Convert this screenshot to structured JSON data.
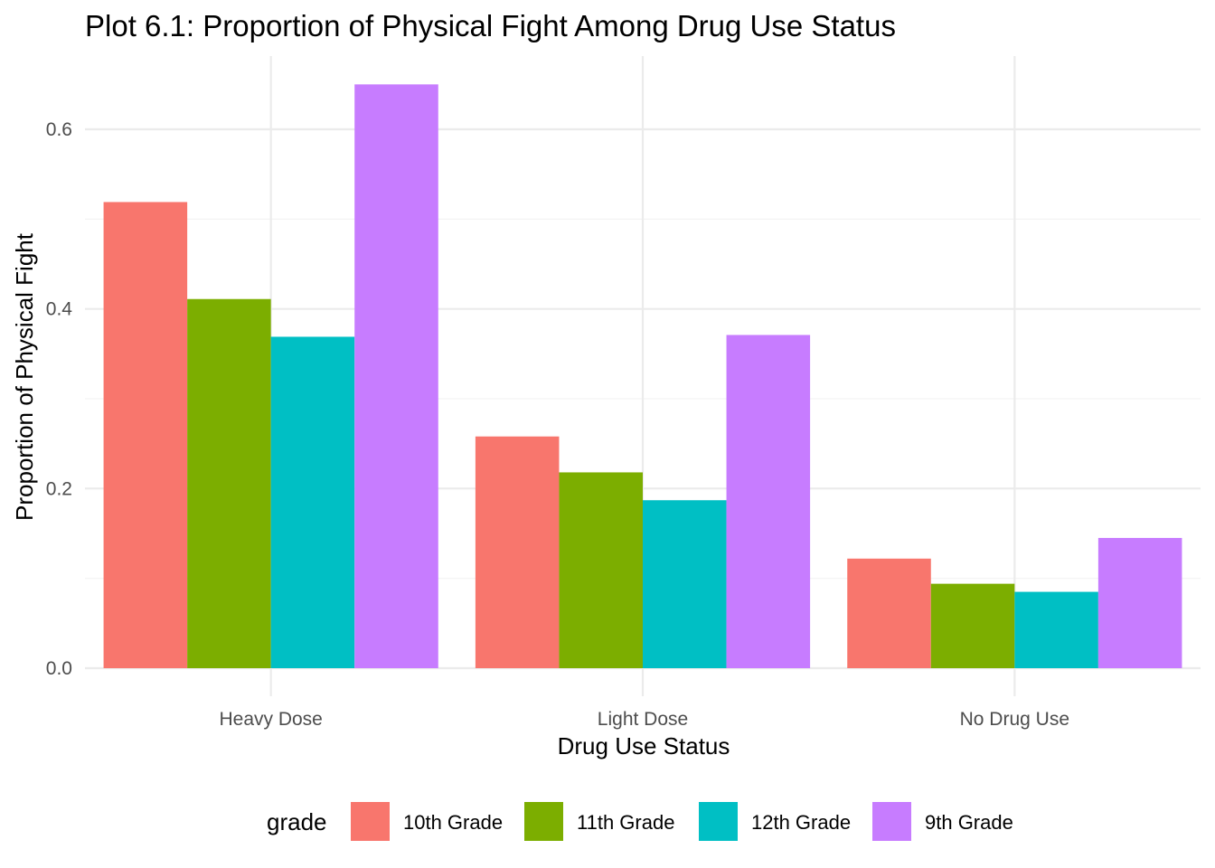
{
  "chart_data": {
    "type": "bar",
    "title": "Plot 6.1: Proportion of Physical Fight Among Drug Use Status",
    "xlabel": "Drug Use Status",
    "ylabel": "Proportion of Physical Fight",
    "categories": [
      "Heavy Dose",
      "Light Dose",
      "No Drug Use"
    ],
    "series": [
      {
        "name": "10th Grade",
        "color": "#F8766D",
        "values": [
          0.519,
          0.258,
          0.122
        ]
      },
      {
        "name": "11th Grade",
        "color": "#7CAE00",
        "values": [
          0.411,
          0.218,
          0.094
        ]
      },
      {
        "name": "12th Grade",
        "color": "#00BFC4",
        "values": [
          0.369,
          0.187,
          0.085
        ]
      },
      {
        "name": "9th Grade",
        "color": "#C77CFF",
        "values": [
          0.65,
          0.371,
          0.145
        ]
      }
    ],
    "ylim": [
      0,
      0.68
    ],
    "yticks": [
      0.0,
      0.2,
      0.4,
      0.6
    ],
    "ytick_labels": [
      "0.0",
      "0.2",
      "0.4",
      "0.6"
    ],
    "legend": {
      "title": "grade",
      "position": "bottom"
    },
    "grid": true
  }
}
